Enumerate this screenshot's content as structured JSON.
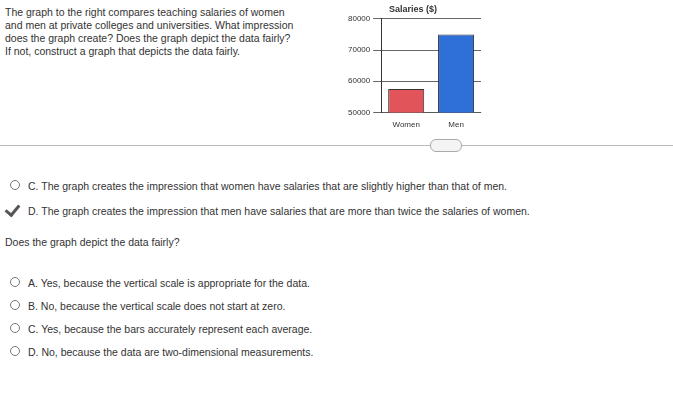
{
  "question_lines": [
    "The graph to the right compares teaching salaries of women",
    "and men at private colleges and universities. What impression",
    "does the graph create? Does the graph depict the data fairly?",
    "If not, construct a graph that depicts the data fairly."
  ],
  "part1_options": [
    {
      "letter": "C.",
      "text": "The graph creates the impression that women have salaries that are slightly higher than that of men.",
      "selected": false
    },
    {
      "letter": "D.",
      "text": "The graph creates the impression that men have salaries that are more than twice the salaries of women.",
      "selected": true
    }
  ],
  "part2_question": "Does the graph depict the data fairly?",
  "part2_options": [
    {
      "letter": "A.",
      "text": "Yes, because the vertical scale is appropriate for the data.",
      "selected": false
    },
    {
      "letter": "B.",
      "text": "No, because the vertical scale does not start at zero.",
      "selected": false
    },
    {
      "letter": "C.",
      "text": "Yes, because the bars accurately represent each average.",
      "selected": false
    },
    {
      "letter": "D.",
      "text": "No, because the data are two-dimensional measurements.",
      "selected": false
    }
  ],
  "chart_data": {
    "type": "bar",
    "title": "Salaries ($)",
    "categories": [
      "Women",
      "Men"
    ],
    "values": [
      57500,
      75000
    ],
    "colors": [
      "#e0545a",
      "#2f6fd8"
    ],
    "ylim": [
      50000,
      80000
    ],
    "yticks": [
      50000,
      60000,
      70000,
      80000
    ],
    "grid": true
  }
}
